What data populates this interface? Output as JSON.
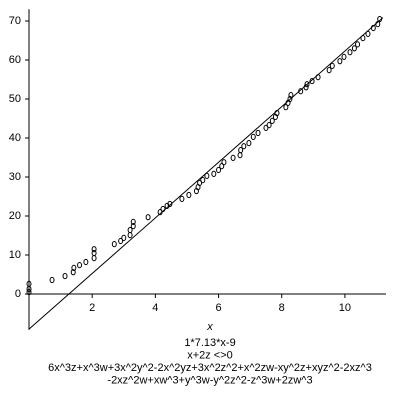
{
  "chart_data": {
    "type": "scatter",
    "xlabel": "x",
    "annotations": [
      "1*7.13*x-9",
      "x+2z <>0",
      "6x^3z+x^3w+3x^2y^2-2x^2yz+3x^2z^2+x^2zw-xy^2z+xyz^2-2xz^3",
      "-2xz^2w+xw^3+y^3w-y^2z^2-z^3w+2zw^3"
    ],
    "xlim": [
      0,
      11.3
    ],
    "ylim": [
      -9.2,
      73
    ],
    "xticks": [
      2,
      4,
      6,
      8,
      10
    ],
    "yticks": [
      0,
      10,
      20,
      30,
      40,
      50,
      60,
      70
    ],
    "series": [
      {
        "type": "scatter",
        "color": "#000000",
        "x": [
          0,
          0,
          0,
          0.73,
          1.14,
          1.4,
          1.42,
          1.6,
          1.8,
          2.06,
          2.06,
          2.06,
          2.7,
          2.9,
          3.0,
          3.2,
          3.2,
          3.3,
          3.3,
          3.77,
          4.15,
          4.24,
          4.37,
          4.46,
          4.84,
          5.06,
          5.3,
          5.35,
          5.4,
          5.5,
          5.63,
          5.85,
          6.0,
          6.1,
          6.17,
          6.46,
          6.68,
          6.7,
          6.8,
          6.96,
          7.1,
          7.25,
          7.5,
          7.6,
          7.7,
          7.8,
          7.85,
          8.13,
          8.2,
          8.26,
          8.29,
          8.6,
          8.77,
          8.8,
          8.96,
          9.15,
          9.5,
          9.6,
          9.84,
          9.97,
          10.16,
          10.3,
          10.4,
          10.57,
          10.73,
          10.9,
          11.04,
          11.1
        ],
        "values": [
          2.6,
          1.3,
          0.5,
          3.6,
          4.6,
          5.6,
          6.7,
          7.4,
          8.2,
          9.2,
          10.5,
          11.5,
          12.8,
          13.6,
          14.4,
          15.1,
          16.4,
          17.4,
          18.5,
          19.7,
          21,
          21.8,
          22.6,
          23.1,
          24.4,
          25.4,
          26.4,
          27.4,
          28.5,
          29.2,
          30.3,
          30.8,
          31.8,
          32.8,
          33.8,
          34.9,
          35.6,
          36.9,
          37.9,
          38.7,
          40.3,
          41.3,
          42.6,
          43.3,
          44.4,
          45.4,
          46.4,
          47.9,
          49,
          50,
          51,
          52,
          53,
          53.8,
          54.6,
          55.6,
          57.4,
          58.5,
          59.7,
          60.8,
          62,
          63,
          64,
          65.6,
          66.7,
          68.2,
          69.2,
          70.5
        ]
      },
      {
        "type": "line",
        "color": "#000000",
        "x": [
          0,
          11.2
        ],
        "values": [
          -9,
          70.86
        ]
      }
    ]
  }
}
